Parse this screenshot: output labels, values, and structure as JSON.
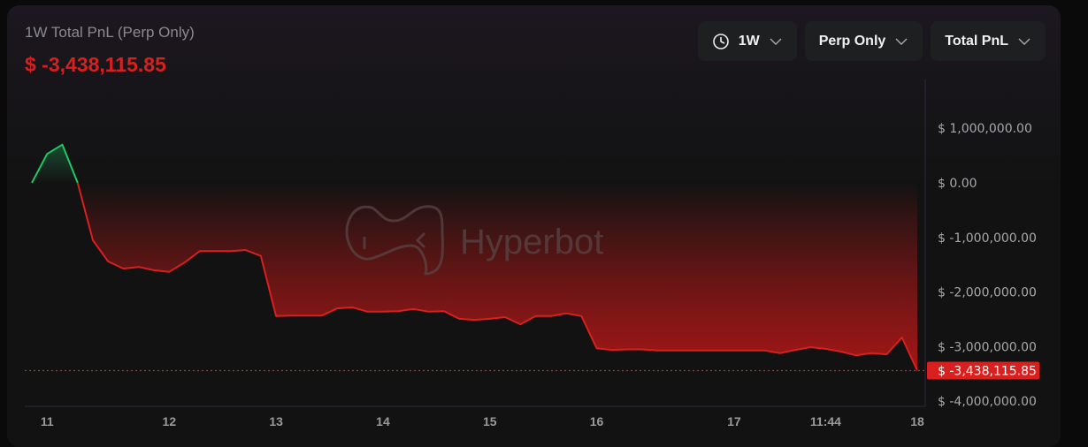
{
  "header": {
    "title": "1W Total PnL (Perp Only)",
    "value": "$ -3,438,115.85"
  },
  "controls": [
    {
      "label": "1W",
      "icon": "clock-icon"
    },
    {
      "label": "Perp Only"
    },
    {
      "label": "Total PnL"
    }
  ],
  "watermark": "Hyperbot",
  "colors": {
    "negative": "#d8201f",
    "positive": "#1fc866",
    "background": "#121212"
  },
  "chart_data": {
    "type": "area",
    "baseline": 0,
    "unit": "USD",
    "values": [
      0,
      530000,
      700000,
      0,
      -1050000,
      -1440000,
      -1570000,
      -1540000,
      -1600000,
      -1630000,
      -1460000,
      -1250000,
      -1250000,
      -1250000,
      -1230000,
      -1340000,
      -2440000,
      -2430000,
      -2430000,
      -2430000,
      -2300000,
      -2280000,
      -2360000,
      -2360000,
      -2350000,
      -2310000,
      -2360000,
      -2350000,
      -2490000,
      -2510000,
      -2490000,
      -2460000,
      -2590000,
      -2440000,
      -2440000,
      -2390000,
      -2440000,
      -3030000,
      -3060000,
      -3050000,
      -3050000,
      -3070000,
      -3070000,
      -3070000,
      -3070000,
      -3070000,
      -3070000,
      -3070000,
      -3070000,
      -3120000,
      -3060000,
      -3010000,
      -3040000,
      -3090000,
      -3160000,
      -3120000,
      -3140000,
      -2830000,
      -3438115.85
    ],
    "ylim": [
      -4000000,
      1800000
    ],
    "yticks": [
      {
        "v": 1000000,
        "label": "$ 1,000,000.00"
      },
      {
        "v": 0,
        "label": "$ 0.00"
      },
      {
        "v": -1000000,
        "label": "$ -1,000,000.00"
      },
      {
        "v": -2000000,
        "label": "$ -2,000,000.00"
      },
      {
        "v": -3000000,
        "label": "$ -3,000,000.00"
      },
      {
        "v": -4000000,
        "label": "$ -4,000,000.00"
      }
    ],
    "xticks": [
      {
        "at": 1,
        "label": "11"
      },
      {
        "at": 9,
        "label": "12"
      },
      {
        "at": 16,
        "label": "13"
      },
      {
        "at": 23,
        "label": "14"
      },
      {
        "at": 30,
        "label": "15"
      },
      {
        "at": 37,
        "label": "16"
      },
      {
        "at": 46,
        "label": "17"
      },
      {
        "at": 52,
        "label": "11:44"
      },
      {
        "at": 58,
        "label": "18"
      }
    ],
    "last_value_label": "$ -3,438,115.85",
    "grid": false
  }
}
